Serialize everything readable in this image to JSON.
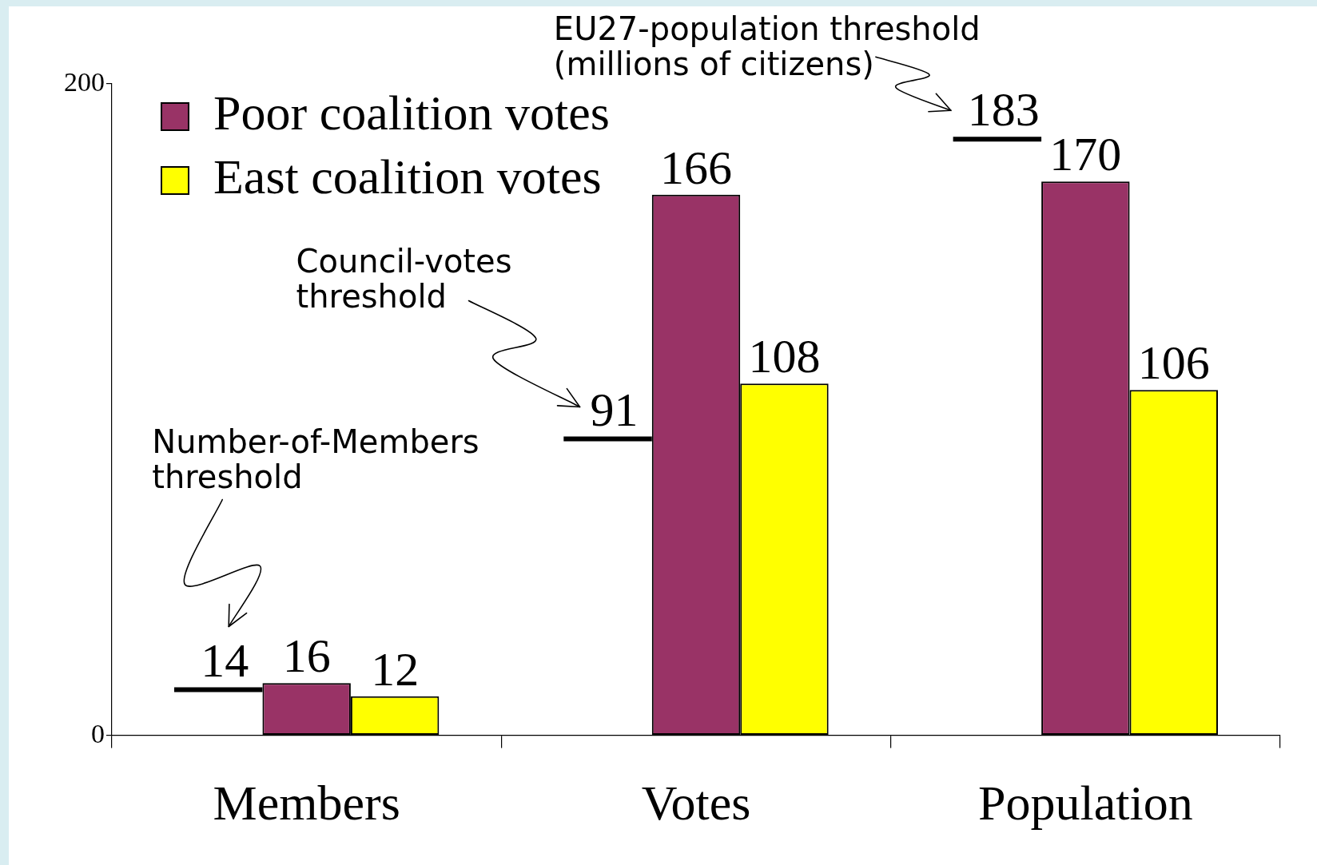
{
  "chart_data": {
    "type": "bar",
    "categories": [
      "Members",
      "Votes",
      "Population"
    ],
    "series": [
      {
        "name": "Poor coalition votes",
        "color": "#993366",
        "values": [
          16,
          166,
          170
        ]
      },
      {
        "name": "East coalition votes",
        "color": "#ffff00",
        "values": [
          12,
          108,
          106
        ]
      }
    ],
    "ylim": [
      0,
      200
    ],
    "yticks": [
      0,
      200
    ],
    "legend": "top left",
    "data_labels": true,
    "ref_lines": [
      {
        "axis": "y",
        "value": 14,
        "label": "14",
        "color": "#000000"
      },
      {
        "axis": "y",
        "value": 91,
        "label": "91",
        "color": "#000000"
      },
      {
        "axis": "y",
        "value": 183,
        "label": "183",
        "color": "#000000"
      }
    ],
    "annotations": [
      "Number-of-Members\nthreshold",
      "Council-votes\nthreshold",
      "EU27-population threshold\n(millions of citizens)"
    ]
  }
}
